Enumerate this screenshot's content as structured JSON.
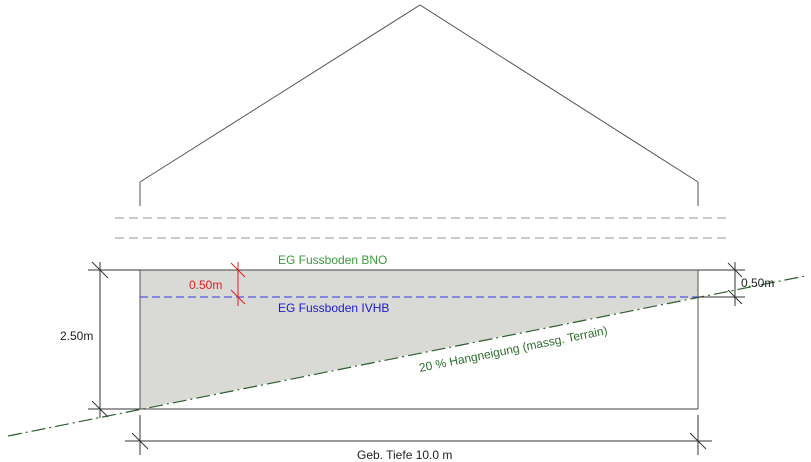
{
  "labels": {
    "floor_bno": "EG Fussboden BNO",
    "floor_ivhb": "EG Fussboden IVHB",
    "offset_left": "0.50m",
    "offset_right": "0.50m",
    "height_left": "2.50m",
    "slope": "20 % Hangneigung (massg. Terrain)",
    "depth": "Geb. Tiefe 10.0 m"
  },
  "colors": {
    "green_text": "#3a9a3a",
    "blue_text": "#1a1ad0",
    "red_text": "#e02020",
    "terrain_line": "#2e5e2e",
    "fill": "#d9d9d6",
    "ivhb_line": "#3333dd"
  }
}
